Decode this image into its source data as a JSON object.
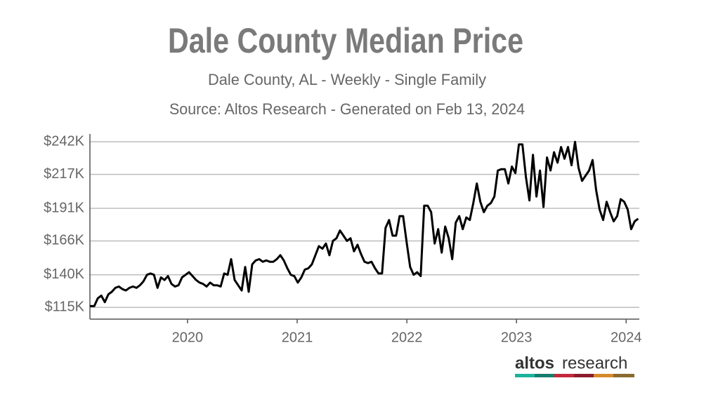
{
  "chart_data": {
    "type": "line",
    "title": "Dale County Median Price",
    "subtitle": "Dale County, AL - Weekly - Single Family",
    "source": "Source: Altos Research - Generated on Feb 13, 2024",
    "x": [
      2019.11,
      2019.15,
      2019.182,
      2019.214,
      2019.246,
      2019.278,
      2019.31,
      2019.342,
      2019.374,
      2019.406,
      2019.438,
      2019.47,
      2019.502,
      2019.534,
      2019.566,
      2019.598,
      2019.63,
      2019.662,
      2019.694,
      2019.726,
      2019.758,
      2019.79,
      2019.822,
      2019.854,
      2019.886,
      2019.918,
      2019.95,
      2019.982,
      2020.014,
      2020.046,
      2020.078,
      2020.11,
      2020.142,
      2020.174,
      2020.206,
      2020.238,
      2020.27,
      2020.302,
      2020.334,
      2020.366,
      2020.398,
      2020.43,
      2020.462,
      2020.494,
      2020.526,
      2020.558,
      2020.59,
      2020.622,
      2020.654,
      2020.686,
      2020.718,
      2020.75,
      2020.782,
      2020.814,
      2020.846,
      2020.878,
      2020.91,
      2020.942,
      2020.974,
      2021.006,
      2021.038,
      2021.07,
      2021.102,
      2021.134,
      2021.166,
      2021.198,
      2021.23,
      2021.262,
      2021.294,
      2021.326,
      2021.358,
      2021.39,
      2021.422,
      2021.454,
      2021.486,
      2021.518,
      2021.55,
      2021.582,
      2021.614,
      2021.646,
      2021.678,
      2021.71,
      2021.742,
      2021.774,
      2021.806,
      2021.838,
      2021.87,
      2021.902,
      2021.934,
      2021.966,
      2021.998,
      2022.03,
      2022.062,
      2022.094,
      2022.126,
      2022.158,
      2022.19,
      2022.222,
      2022.254,
      2022.286,
      2022.318,
      2022.35,
      2022.382,
      2022.414,
      2022.446,
      2022.478,
      2022.51,
      2022.542,
      2022.574,
      2022.606,
      2022.638,
      2022.67,
      2022.702,
      2022.734,
      2022.766,
      2022.798,
      2022.83,
      2022.862,
      2022.894,
      2022.926,
      2022.958,
      2022.99,
      2023.022,
      2023.054,
      2023.086,
      2023.118,
      2023.15,
      2023.182,
      2023.214,
      2023.246,
      2023.278,
      2023.31,
      2023.342,
      2023.374,
      2023.406,
      2023.438,
      2023.47,
      2023.502,
      2023.534,
      2023.566,
      2023.598,
      2023.63,
      2023.662,
      2023.694,
      2023.726,
      2023.758,
      2023.79,
      2023.822,
      2023.854,
      2023.886,
      2023.918,
      2023.95,
      2023.982,
      2024.014,
      2024.046,
      2024.078,
      2024.11
    ],
    "series": [
      {
        "color": "#000000",
        "values": [
          116000,
          116000,
          122000,
          124000,
          119000,
          125000,
          127000,
          130000,
          131000,
          129000,
          128000,
          130000,
          131000,
          130000,
          132000,
          135000,
          140000,
          141000,
          140000,
          130000,
          138000,
          136000,
          139000,
          133000,
          131000,
          132000,
          138000,
          140000,
          142000,
          139000,
          136000,
          134000,
          133000,
          131000,
          134000,
          132000,
          132000,
          131000,
          141000,
          140000,
          152000,
          136000,
          132000,
          128000,
          146000,
          127000,
          148000,
          151000,
          152000,
          150000,
          151000,
          150000,
          150000,
          152000,
          155000,
          151000,
          145000,
          140000,
          139000,
          134000,
          138000,
          144000,
          145000,
          148000,
          155000,
          162000,
          160000,
          164000,
          155000,
          166000,
          168000,
          174000,
          170000,
          166000,
          168000,
          158000,
          163000,
          156000,
          150000,
          149000,
          150000,
          145000,
          141000,
          141000,
          176000,
          182000,
          170000,
          170000,
          185000,
          185000,
          165000,
          146000,
          140000,
          142000,
          139000,
          193000,
          193000,
          188000,
          164000,
          175000,
          157000,
          177000,
          168000,
          152000,
          180000,
          185000,
          175000,
          184000,
          182000,
          195000,
          210000,
          196000,
          188000,
          193000,
          195000,
          200000,
          220000,
          221000,
          221000,
          210000,
          223000,
          218000,
          240000,
          240000,
          215000,
          197000,
          232000,
          200000,
          220000,
          192000,
          230000,
          220000,
          234000,
          226000,
          238000,
          229000,
          238000,
          224000,
          242000,
          222000,
          212000,
          216000,
          220000,
          228000,
          205000,
          190000,
          182000,
          196000,
          188000,
          181000,
          185000,
          198000,
          196000,
          190000,
          175000,
          181000,
          183000
        ]
      }
    ],
    "xlim": [
      2019.11,
      2024.12
    ],
    "xticks": [
      2020,
      2021,
      2022,
      2023,
      2024
    ],
    "ylim": [
      106000,
      248000
    ],
    "yticks": [
      {
        "value": 115000,
        "label": "$115K"
      },
      {
        "value": 140000,
        "label": "$140K"
      },
      {
        "value": 166000,
        "label": "$166K"
      },
      {
        "value": 191000,
        "label": "$191K"
      },
      {
        "value": 217000,
        "label": "$217K"
      },
      {
        "value": 242000,
        "label": "$242K"
      }
    ],
    "grid": true
  },
  "logo": {
    "brand": "altos",
    "suffix": "research"
  }
}
